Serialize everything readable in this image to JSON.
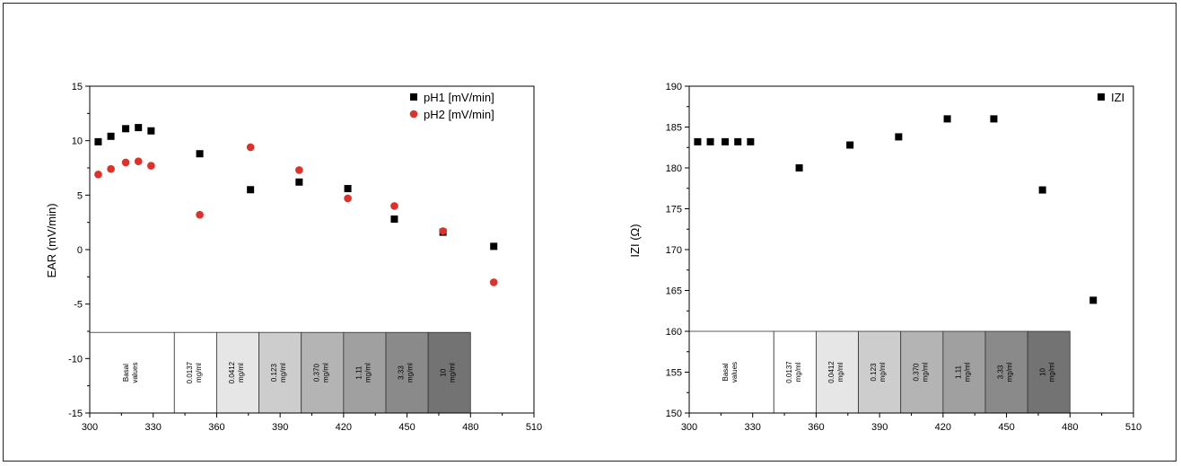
{
  "chart_data": [
    {
      "type": "scatter",
      "title": "",
      "xlabel": "",
      "ylabel": "EAR (mV/min)",
      "xlim": [
        300,
        510
      ],
      "ylim": [
        -15,
        15
      ],
      "xticks": [
        "300",
        "330",
        "360",
        "390",
        "420",
        "450",
        "480",
        "510"
      ],
      "yticks": [
        "-15",
        "-10",
        "-5",
        "0",
        "5",
        "10",
        "15"
      ],
      "legend_position": "top-right",
      "grid": false,
      "series": [
        {
          "name": "pH1 [mV/min]",
          "marker": "square",
          "color": "#000000",
          "points": [
            [
              304,
              9.9
            ],
            [
              310,
              10.4
            ],
            [
              317,
              11.1
            ],
            [
              323,
              11.2
            ],
            [
              329,
              10.9
            ],
            [
              352,
              8.8
            ],
            [
              376,
              5.5
            ],
            [
              399,
              6.2
            ],
            [
              422,
              5.6
            ],
            [
              444,
              2.8
            ],
            [
              467,
              1.6
            ],
            [
              491,
              0.3
            ]
          ]
        },
        {
          "name": "pH2 [mV/min]",
          "marker": "circle",
          "color": "#e0302a",
          "points": [
            [
              304,
              6.9
            ],
            [
              310,
              7.4
            ],
            [
              317,
              8.0
            ],
            [
              323,
              8.1
            ],
            [
              329,
              7.7
            ],
            [
              352,
              3.2
            ],
            [
              376,
              9.4
            ],
            [
              399,
              7.3
            ],
            [
              422,
              4.7
            ],
            [
              444,
              4.0
            ],
            [
              467,
              1.7
            ],
            [
              491,
              -3.0
            ]
          ]
        }
      ],
      "concentration_bands": [
        {
          "label_line1": "Basal",
          "label_line2": "values",
          "x0": 300,
          "x1": 340,
          "fill": "#ffffff"
        },
        {
          "label_line1": "0.0137",
          "label_line2": "mg/ml",
          "x0": 340,
          "x1": 360,
          "fill": "#ffffff"
        },
        {
          "label_line1": "0.0412",
          "label_line2": "mg/ml",
          "x0": 360,
          "x1": 380,
          "fill": "#e6e6e6"
        },
        {
          "label_line1": "0.123",
          "label_line2": "mg/ml",
          "x0": 380,
          "x1": 400,
          "fill": "#cdcdcd"
        },
        {
          "label_line1": "0.370",
          "label_line2": "mg/ml",
          "x0": 400,
          "x1": 420,
          "fill": "#b4b4b4"
        },
        {
          "label_line1": "1.11",
          "label_line2": "mg/ml",
          "x0": 420,
          "x1": 440,
          "fill": "#a0a0a0"
        },
        {
          "label_line1": "3.33",
          "label_line2": "mg/ml",
          "x0": 440,
          "x1": 460,
          "fill": "#8a8a8a"
        },
        {
          "label_line1": "10",
          "label_line2": "mg/ml",
          "x0": 460,
          "x1": 480,
          "fill": "#737373"
        }
      ],
      "band_y_range": [
        -15,
        -7.6
      ]
    },
    {
      "type": "scatter",
      "title": "",
      "xlabel": "",
      "ylabel": "IZI (Ω)",
      "xlim": [
        300,
        510
      ],
      "ylim": [
        150,
        190
      ],
      "xticks": [
        "300",
        "330",
        "360",
        "390",
        "420",
        "450",
        "480",
        "510"
      ],
      "yticks": [
        "150",
        "155",
        "160",
        "165",
        "170",
        "175",
        "180",
        "185",
        "190"
      ],
      "legend_position": "top-right",
      "grid": false,
      "series": [
        {
          "name": "IZI",
          "marker": "square",
          "color": "#000000",
          "points": [
            [
              304,
              183.2
            ],
            [
              310,
              183.2
            ],
            [
              317,
              183.2
            ],
            [
              323,
              183.2
            ],
            [
              329,
              183.2
            ],
            [
              352,
              180.0
            ],
            [
              376,
              182.8
            ],
            [
              399,
              183.8
            ],
            [
              422,
              186.0
            ],
            [
              444,
              186.0
            ],
            [
              467,
              177.3
            ],
            [
              491,
              163.8
            ]
          ]
        }
      ],
      "concentration_bands": [
        {
          "label_line1": "Basal",
          "label_line2": "values",
          "x0": 300,
          "x1": 340,
          "fill": "#ffffff"
        },
        {
          "label_line1": "0.0137",
          "label_line2": "mg/ml",
          "x0": 340,
          "x1": 360,
          "fill": "#ffffff"
        },
        {
          "label_line1": "0.0412",
          "label_line2": "mg/ml",
          "x0": 360,
          "x1": 380,
          "fill": "#e6e6e6"
        },
        {
          "label_line1": "0.123",
          "label_line2": "mg/ml",
          "x0": 380,
          "x1": 400,
          "fill": "#cdcdcd"
        },
        {
          "label_line1": "0.370",
          "label_line2": "mg/ml",
          "x0": 400,
          "x1": 420,
          "fill": "#b4b4b4"
        },
        {
          "label_line1": "1.11",
          "label_line2": "mg/ml",
          "x0": 420,
          "x1": 440,
          "fill": "#a0a0a0"
        },
        {
          "label_line1": "3.33",
          "label_line2": "mg/ml",
          "x0": 440,
          "x1": 460,
          "fill": "#8a8a8a"
        },
        {
          "label_line1": "10",
          "label_line2": "mg/ml",
          "x0": 460,
          "x1": 480,
          "fill": "#737373"
        }
      ],
      "band_y_range": [
        150,
        160
      ]
    }
  ]
}
